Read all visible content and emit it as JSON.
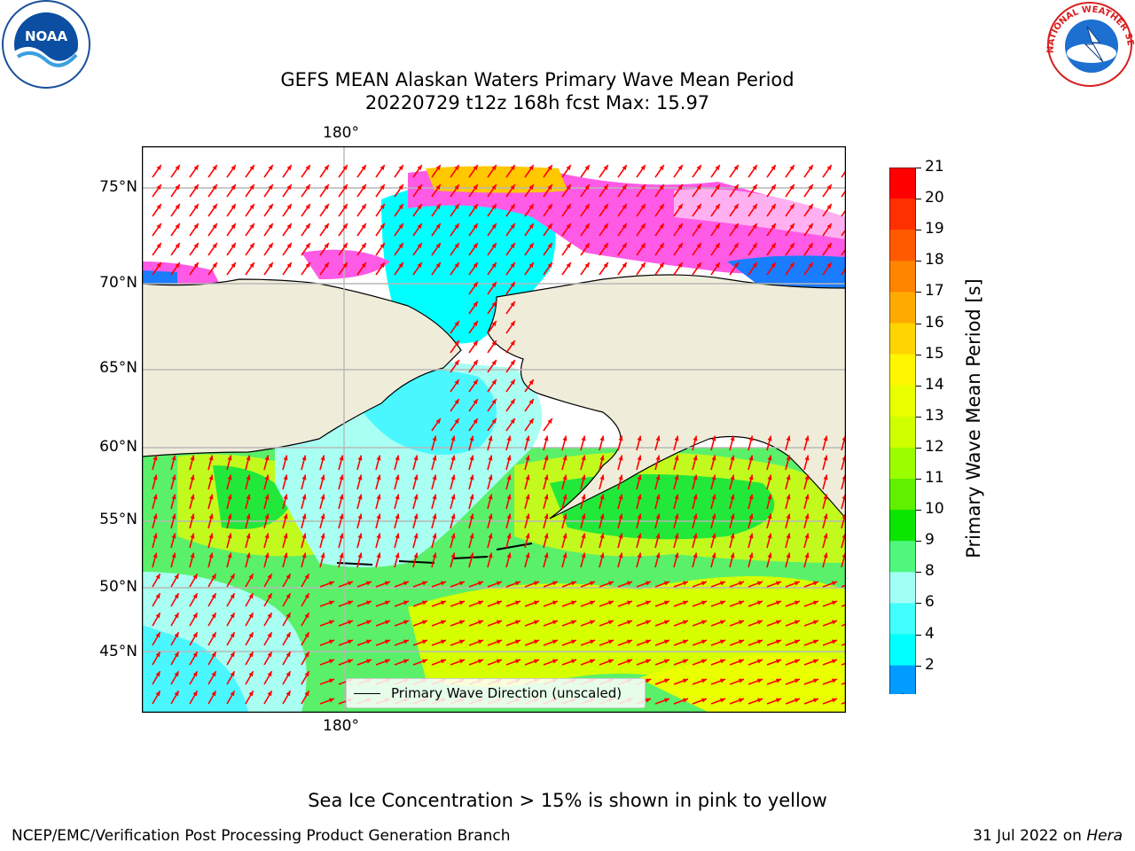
{
  "title": {
    "line1": "GEFS MEAN Alaskan Waters Primary Wave Mean Period",
    "line2": "20220729 t12z 168h fcst   Max: 15.97"
  },
  "logos": {
    "left": {
      "icon": "noaa-logo",
      "text": "NOAA"
    },
    "right": {
      "icon": "nws-logo",
      "text": "NATIONAL WEATHER SERVICE"
    }
  },
  "map": {
    "lat_labels": [
      "75°N",
      "70°N",
      "65°N",
      "60°N",
      "55°N",
      "50°N",
      "45°N"
    ],
    "lon_label_top": "180°",
    "lon_label_bottom": "180°",
    "legend": "Primary Wave Direction (unscaled)",
    "arrow_color": "#ff0000",
    "land_color": "#efedda"
  },
  "colorbar": {
    "label": "Primary Wave Mean Period [s]",
    "ticks": [
      "21",
      "20",
      "19",
      "18",
      "17",
      "16",
      "15",
      "14",
      "13",
      "12",
      "11",
      "10",
      "9",
      "8",
      "6",
      "4",
      "2"
    ],
    "colors": [
      "#ff0000",
      "#ff3000",
      "#ff5a00",
      "#ff8400",
      "#ffaa00",
      "#ffd400",
      "#fff600",
      "#eaff00",
      "#d0ff00",
      "#9cff00",
      "#60f000",
      "#0ae600",
      "#4ff77c",
      "#a2fff6",
      "#40fffd",
      "#00ffff",
      "#009cff",
      "#0000ff"
    ]
  },
  "caption": "Sea Ice Concentration > 15% is shown in pink to yellow",
  "footer": {
    "left": "NCEP/EMC/Verification Post Processing Product Generation Branch",
    "right_prefix": "31 Jul 2022 on ",
    "right_host": "Hera"
  }
}
